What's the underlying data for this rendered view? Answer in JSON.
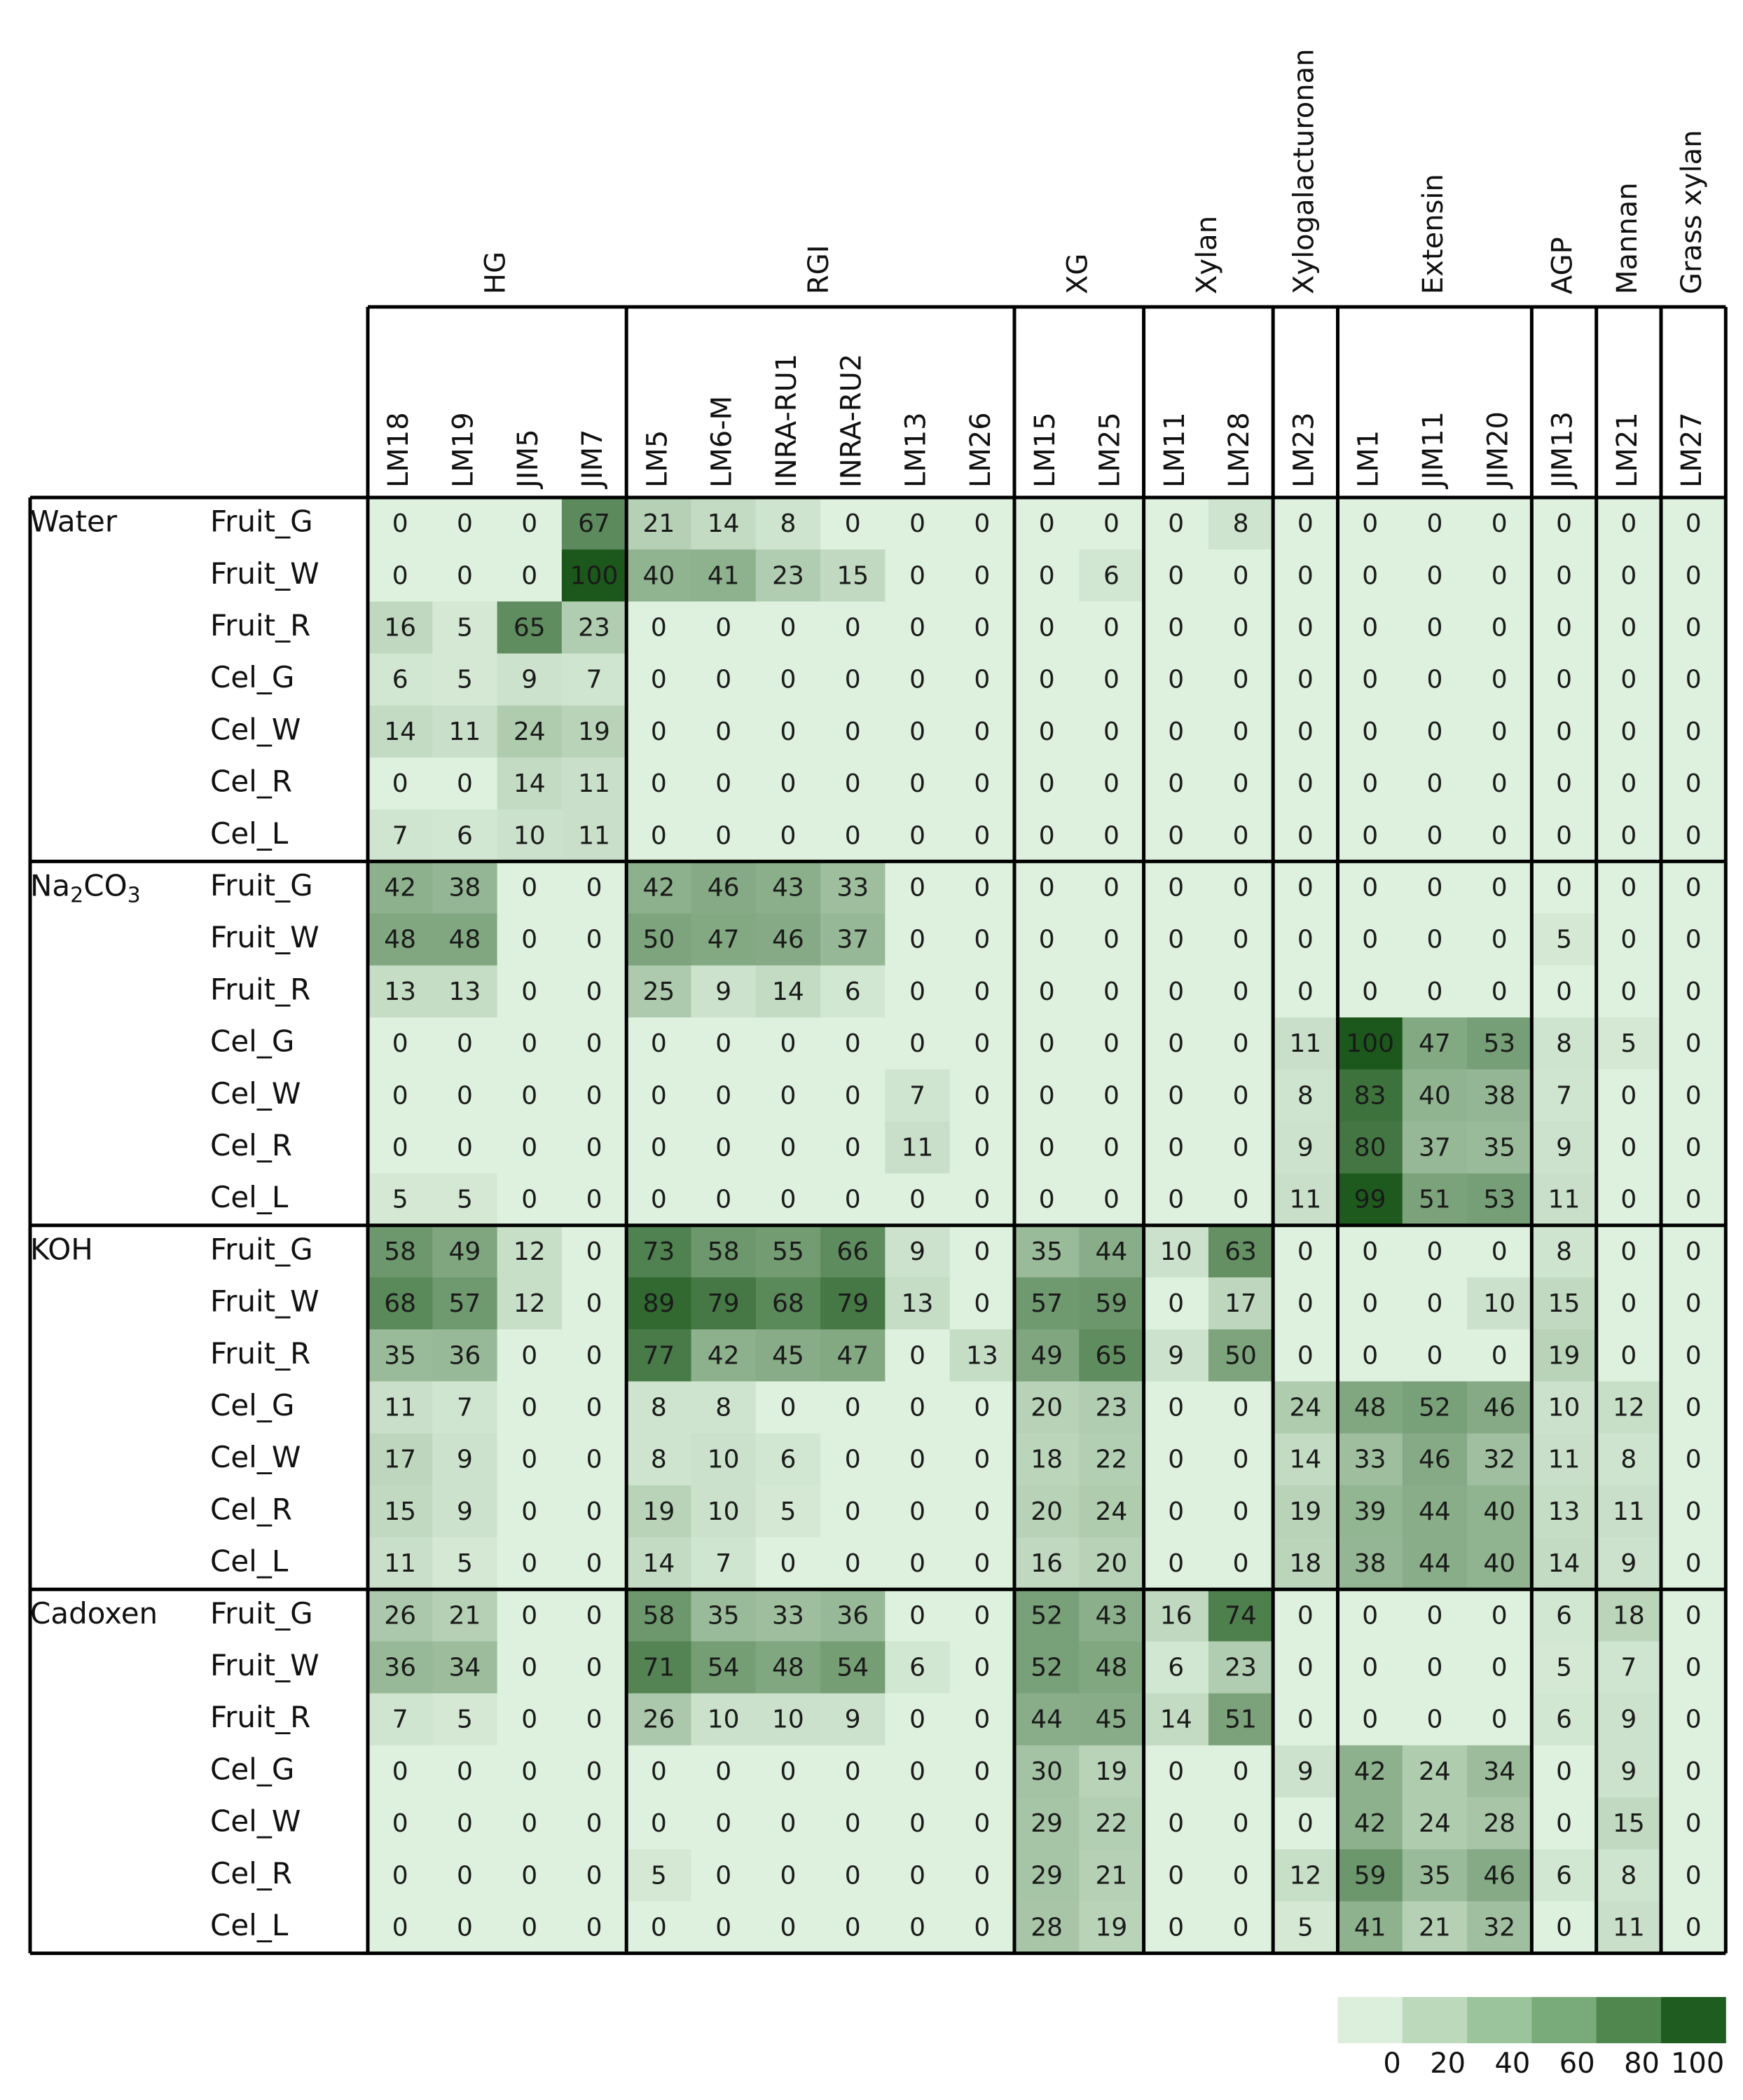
{
  "chart_data": {
    "type": "heatmap",
    "groups": [
      {
        "label": "HG",
        "antibodies": [
          "LM18",
          "LM19",
          "JIM5",
          "JIM7"
        ]
      },
      {
        "label": "RGI",
        "antibodies": [
          "LM5",
          "LM6-M",
          "INRA-RU1",
          "INRA-RU2",
          "LM13",
          "LM26"
        ]
      },
      {
        "label": "XG",
        "antibodies": [
          "LM15",
          "LM25"
        ]
      },
      {
        "label": "Xylan",
        "antibodies": [
          "LM11",
          "LM28"
        ]
      },
      {
        "label": "Xylogalacturonan",
        "antibodies": [
          "LM23"
        ]
      },
      {
        "label": "Extensin",
        "antibodies": [
          "LM1",
          "JIM11",
          "JIM20"
        ]
      },
      {
        "label": "AGP",
        "antibodies": [
          "JIM13"
        ]
      },
      {
        "label": "Mannan",
        "antibodies": [
          "LM21"
        ]
      },
      {
        "label": "Grass xylan",
        "antibodies": [
          "LM27"
        ]
      }
    ],
    "extractions": [
      {
        "label": "Water",
        "rows": [
          {
            "sample": "Fruit_G",
            "values": [
              0,
              0,
              0,
              67,
              21,
              14,
              8,
              0,
              0,
              0,
              0,
              0,
              0,
              8,
              0,
              0,
              0,
              0,
              0,
              0,
              0
            ]
          },
          {
            "sample": "Fruit_W",
            "values": [
              0,
              0,
              0,
              100,
              40,
              41,
              23,
              15,
              0,
              0,
              0,
              6,
              0,
              0,
              0,
              0,
              0,
              0,
              0,
              0,
              0
            ]
          },
          {
            "sample": "Fruit_R",
            "values": [
              16,
              5,
              65,
              23,
              0,
              0,
              0,
              0,
              0,
              0,
              0,
              0,
              0,
              0,
              0,
              0,
              0,
              0,
              0,
              0,
              0
            ]
          },
          {
            "sample": "Cel_G",
            "values": [
              6,
              5,
              9,
              7,
              0,
              0,
              0,
              0,
              0,
              0,
              0,
              0,
              0,
              0,
              0,
              0,
              0,
              0,
              0,
              0,
              0
            ]
          },
          {
            "sample": "Cel_W",
            "values": [
              14,
              11,
              24,
              19,
              0,
              0,
              0,
              0,
              0,
              0,
              0,
              0,
              0,
              0,
              0,
              0,
              0,
              0,
              0,
              0,
              0
            ]
          },
          {
            "sample": "Cel_R",
            "values": [
              0,
              0,
              14,
              11,
              0,
              0,
              0,
              0,
              0,
              0,
              0,
              0,
              0,
              0,
              0,
              0,
              0,
              0,
              0,
              0,
              0
            ]
          },
          {
            "sample": "Cel_L",
            "values": [
              7,
              6,
              10,
              11,
              0,
              0,
              0,
              0,
              0,
              0,
              0,
              0,
              0,
              0,
              0,
              0,
              0,
              0,
              0,
              0,
              0
            ]
          }
        ]
      },
      {
        "label": "Na2CO3",
        "label_main": "Na",
        "label_sub": "2",
        "label_after": "CO",
        "label_sub2": "3",
        "rows": [
          {
            "sample": "Fruit_G",
            "values": [
              42,
              38,
              0,
              0,
              42,
              46,
              43,
              33,
              0,
              0,
              0,
              0,
              0,
              0,
              0,
              0,
              0,
              0,
              0,
              0,
              0
            ]
          },
          {
            "sample": "Fruit_W",
            "values": [
              48,
              48,
              0,
              0,
              50,
              47,
              46,
              37,
              0,
              0,
              0,
              0,
              0,
              0,
              0,
              0,
              0,
              0,
              5,
              0,
              0
            ]
          },
          {
            "sample": "Fruit_R",
            "values": [
              13,
              13,
              0,
              0,
              25,
              9,
              14,
              6,
              0,
              0,
              0,
              0,
              0,
              0,
              0,
              0,
              0,
              0,
              0,
              0,
              0
            ]
          },
          {
            "sample": "Cel_G",
            "values": [
              0,
              0,
              0,
              0,
              0,
              0,
              0,
              0,
              0,
              0,
              0,
              0,
              0,
              0,
              11,
              100,
              47,
              53,
              8,
              5,
              0
            ]
          },
          {
            "sample": "Cel_W",
            "values": [
              0,
              0,
              0,
              0,
              0,
              0,
              0,
              0,
              7,
              0,
              0,
              0,
              0,
              0,
              8,
              83,
              40,
              38,
              7,
              0,
              0
            ]
          },
          {
            "sample": "Cel_R",
            "values": [
              0,
              0,
              0,
              0,
              0,
              0,
              0,
              0,
              11,
              0,
              0,
              0,
              0,
              0,
              9,
              80,
              37,
              35,
              9,
              0,
              0
            ]
          },
          {
            "sample": "Cel_L",
            "values": [
              5,
              5,
              0,
              0,
              0,
              0,
              0,
              0,
              0,
              0,
              0,
              0,
              0,
              0,
              11,
              99,
              51,
              53,
              11,
              0,
              0
            ]
          }
        ]
      },
      {
        "label": "KOH",
        "rows": [
          {
            "sample": "Fruit_G",
            "values": [
              58,
              49,
              12,
              0,
              73,
              58,
              55,
              66,
              9,
              0,
              35,
              44,
              10,
              63,
              0,
              0,
              0,
              0,
              8,
              0,
              0
            ]
          },
          {
            "sample": "Fruit_W",
            "values": [
              68,
              57,
              12,
              0,
              89,
              79,
              68,
              79,
              13,
              0,
              57,
              59,
              0,
              17,
              0,
              0,
              0,
              10,
              15,
              0,
              0
            ]
          },
          {
            "sample": "Fruit_R",
            "values": [
              35,
              36,
              0,
              0,
              77,
              42,
              45,
              47,
              0,
              13,
              49,
              65,
              9,
              50,
              0,
              0,
              0,
              0,
              19,
              0,
              0
            ]
          },
          {
            "sample": "Cel_G",
            "values": [
              11,
              7,
              0,
              0,
              8,
              8,
              0,
              0,
              0,
              0,
              20,
              23,
              0,
              0,
              24,
              48,
              52,
              46,
              10,
              12,
              0
            ]
          },
          {
            "sample": "Cel_W",
            "values": [
              17,
              9,
              0,
              0,
              8,
              10,
              6,
              0,
              0,
              0,
              18,
              22,
              0,
              0,
              14,
              33,
              46,
              32,
              11,
              8,
              0
            ]
          },
          {
            "sample": "Cel_R",
            "values": [
              15,
              9,
              0,
              0,
              19,
              10,
              5,
              0,
              0,
              0,
              20,
              24,
              0,
              0,
              19,
              39,
              44,
              40,
              13,
              11,
              0
            ]
          },
          {
            "sample": "Cel_L",
            "values": [
              11,
              5,
              0,
              0,
              14,
              7,
              0,
              0,
              0,
              0,
              16,
              20,
              0,
              0,
              18,
              38,
              44,
              40,
              14,
              9,
              0
            ]
          }
        ]
      },
      {
        "label": "Cadoxen",
        "rows": [
          {
            "sample": "Fruit_G",
            "values": [
              26,
              21,
              0,
              0,
              58,
              35,
              33,
              36,
              0,
              0,
              52,
              43,
              16,
              74,
              0,
              0,
              0,
              0,
              6,
              18,
              0
            ]
          },
          {
            "sample": "Fruit_W",
            "values": [
              36,
              34,
              0,
              0,
              71,
              54,
              48,
              54,
              6,
              0,
              52,
              48,
              6,
              23,
              0,
              0,
              0,
              0,
              5,
              7,
              0
            ]
          },
          {
            "sample": "Fruit_R",
            "values": [
              7,
              5,
              0,
              0,
              26,
              10,
              10,
              9,
              0,
              0,
              44,
              45,
              14,
              51,
              0,
              0,
              0,
              0,
              6,
              9,
              0
            ]
          },
          {
            "sample": "Cel_G",
            "values": [
              0,
              0,
              0,
              0,
              0,
              0,
              0,
              0,
              0,
              0,
              30,
              19,
              0,
              0,
              9,
              42,
              24,
              34,
              0,
              9,
              0
            ]
          },
          {
            "sample": "Cel_W",
            "values": [
              0,
              0,
              0,
              0,
              0,
              0,
              0,
              0,
              0,
              0,
              29,
              22,
              0,
              0,
              0,
              42,
              24,
              28,
              0,
              15,
              0
            ]
          },
          {
            "sample": "Cel_R",
            "values": [
              0,
              0,
              0,
              0,
              5,
              0,
              0,
              0,
              0,
              0,
              29,
              21,
              0,
              0,
              12,
              59,
              35,
              46,
              6,
              8,
              0
            ]
          },
          {
            "sample": "Cel_L",
            "values": [
              0,
              0,
              0,
              0,
              0,
              0,
              0,
              0,
              0,
              0,
              28,
              19,
              0,
              0,
              5,
              41,
              21,
              32,
              0,
              11,
              0
            ]
          }
        ]
      }
    ],
    "legend": {
      "ticks": [
        "0",
        "20",
        "40",
        "60",
        "80",
        "100"
      ],
      "colors": [
        "#dcefdc",
        "#bcd9bc",
        "#9cc49c",
        "#79aa79",
        "#4f874f",
        "#1f5c1f"
      ]
    },
    "value_range": [
      0,
      100
    ]
  }
}
